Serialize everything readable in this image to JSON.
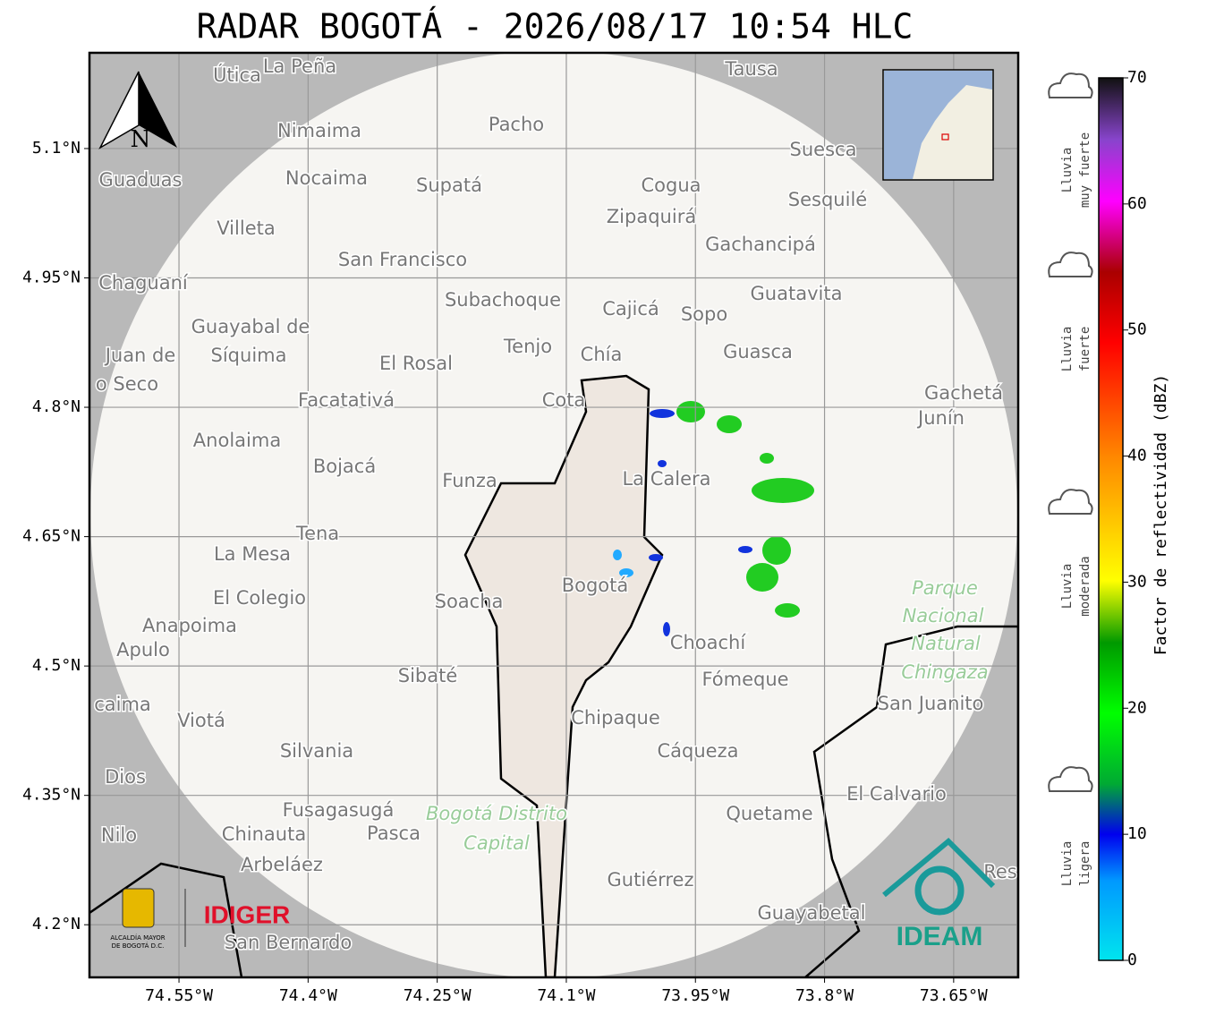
{
  "title": "RADAR BOGOTÁ - 2026/08/17 10:54 HLC",
  "map": {
    "lon_range": [
      -74.654,
      -73.575
    ],
    "lat_range": [
      4.139,
      5.211
    ],
    "lon_ticks": [
      {
        "value": -74.55,
        "label": "74.55°W"
      },
      {
        "value": -74.4,
        "label": "74.4°W"
      },
      {
        "value": -74.25,
        "label": "74.25°W"
      },
      {
        "value": -74.1,
        "label": "74.1°W"
      },
      {
        "value": -73.95,
        "label": "73.95°W"
      },
      {
        "value": -73.8,
        "label": "73.8°W"
      },
      {
        "value": -73.65,
        "label": "73.65°W"
      }
    ],
    "lat_ticks": [
      {
        "value": 5.1,
        "label": "5.1°N"
      },
      {
        "value": 4.95,
        "label": "4.95°N"
      },
      {
        "value": 4.8,
        "label": "4.8°N"
      },
      {
        "value": 4.65,
        "label": "4.65°N"
      },
      {
        "value": 4.5,
        "label": "4.5°N"
      },
      {
        "value": 4.35,
        "label": "4.35°N"
      },
      {
        "value": 4.2,
        "label": "4.2°N"
      }
    ],
    "grid": true,
    "north_label": "N",
    "places": [
      "Útica",
      "La Peña",
      "Tausa",
      "Pacho",
      "Nimaima",
      "Guaduas",
      "Nocaima",
      "Supatá",
      "Cogua",
      "Suesca",
      "Sesquilé",
      "Zipaquirá",
      "Villeta",
      "Gachancipá",
      "San Francisco",
      "Chaguaní",
      "Guatavita",
      "Subachoque",
      "Cajicá",
      "Sopo",
      "Guayabal de",
      "Síquima",
      "Tenjo",
      "Chía",
      "Guasca",
      "Juan de",
      "o Seco",
      "El Rosal",
      "Facatativá",
      "Cota",
      "Gachetá",
      "Junín",
      "Anolaima",
      "Bojacá",
      "La Calera",
      "Funza",
      "Tena",
      "La Mesa",
      "El Colegio",
      "Soacha",
      "Bogotá",
      "Parque",
      "Nacional",
      "Natural",
      "Chingaza",
      "Anapoima",
      "Apulo",
      "Choachí",
      "Sibaté",
      "Fómeque",
      "San Juanito",
      "caima",
      "Viotá",
      "Chipaque",
      "Silvania",
      "Cáqueza",
      "Dios",
      "El Calvario",
      "Fusagasugá",
      "Bogotá Distrito",
      "Capital",
      "Quetame",
      "Nilo",
      "Chinauta",
      "Pasca",
      "Arbeláez",
      "Gutiérrez",
      "Guayabetal",
      "San Bernardo",
      "Res"
    ],
    "logos": {
      "idiger": "IDIGER",
      "alcaldia": [
        "ALCALDÍA MAYOR",
        "DE BOGOTÁ D.C."
      ],
      "ideam": "IDEAM"
    }
  },
  "colorbar": {
    "label": "Factor de reflectividad (dBZ)",
    "range": [
      0,
      70
    ],
    "ticks": [
      0,
      10,
      20,
      30,
      40,
      50,
      60,
      70
    ]
  },
  "rain_legend": [
    [
      "Lluvia",
      "muy fuerte"
    ],
    [
      "Lluvia",
      "fuerte"
    ],
    [
      "Lluvia",
      "moderada"
    ],
    [
      "Lluvia",
      "ligera"
    ]
  ]
}
